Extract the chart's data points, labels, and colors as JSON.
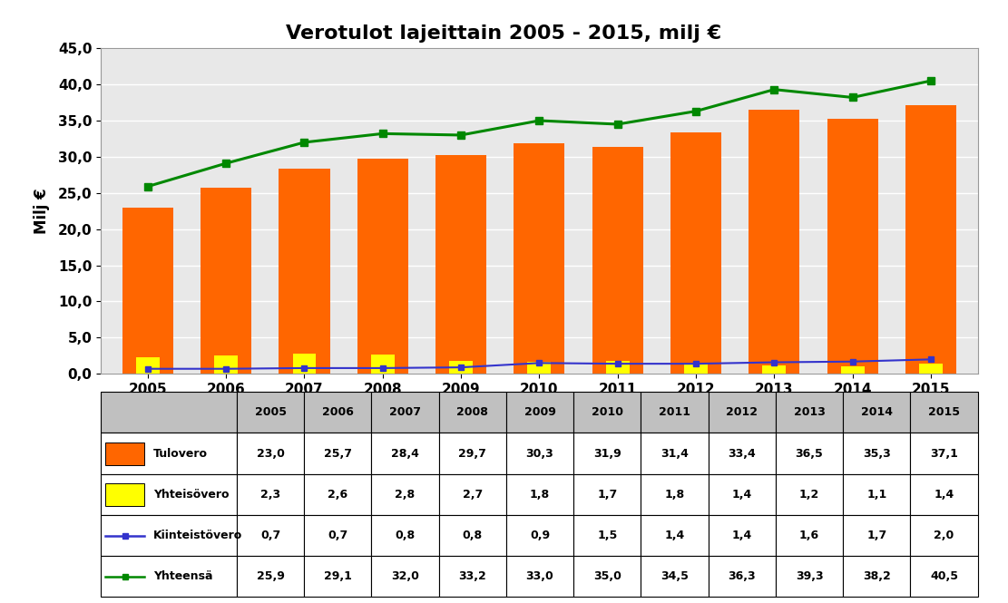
{
  "title": "Verotulot lajeittain 2005 - 2015, milj €",
  "years": [
    2005,
    2006,
    2007,
    2008,
    2009,
    2010,
    2011,
    2012,
    2013,
    2014,
    2015
  ],
  "tulovero": [
    23.0,
    25.7,
    28.4,
    29.7,
    30.3,
    31.9,
    31.4,
    33.4,
    36.5,
    35.3,
    37.1
  ],
  "yhteisovero": [
    2.3,
    2.6,
    2.8,
    2.7,
    1.8,
    1.7,
    1.8,
    1.4,
    1.2,
    1.1,
    1.4
  ],
  "kiinteistovero": [
    0.7,
    0.7,
    0.8,
    0.8,
    0.9,
    1.5,
    1.4,
    1.4,
    1.6,
    1.7,
    2.0
  ],
  "yhteensa": [
    25.9,
    29.1,
    32.0,
    33.2,
    33.0,
    35.0,
    34.5,
    36.3,
    39.3,
    38.2,
    40.5
  ],
  "bar_color_tulovero": "#FF6600",
  "bar_color_yhteiso": "#FFFF00",
  "line_color_kiinteisto": "#3333CC",
  "line_color_yhteensa": "#008800",
  "ylabel": "Milj €",
  "ylim": [
    0,
    45
  ],
  "yticks": [
    0.0,
    5.0,
    10.0,
    15.0,
    20.0,
    25.0,
    30.0,
    35.0,
    40.0,
    45.0
  ],
  "background_color": "#FFFFFF",
  "plot_bg_color": "#E8E8E8",
  "grid_color": "#FFFFFF",
  "legend_labels": [
    "Tulovero",
    "Yhteisövero",
    "Kiinteistövero",
    "Yhteensä"
  ],
  "table_values_tulovero": [
    "23,0",
    "25,7",
    "28,4",
    "29,7",
    "30,3",
    "31,9",
    "31,4",
    "33,4",
    "36,5",
    "35,3",
    "37,1"
  ],
  "table_values_yhteiso": [
    "2,3",
    "2,6",
    "2,8",
    "2,7",
    "1,8",
    "1,7",
    "1,8",
    "1,4",
    "1,2",
    "1,1",
    "1,4"
  ],
  "table_values_kiinteisto": [
    "0,7",
    "0,7",
    "0,8",
    "0,8",
    "0,9",
    "1,5",
    "1,4",
    "1,4",
    "1,6",
    "1,7",
    "2,0"
  ],
  "table_values_yhteensa": [
    "25,9",
    "29,1",
    "32,0",
    "33,2",
    "33,0",
    "35,0",
    "34,5",
    "36,3",
    "39,3",
    "38,2",
    "40,5"
  ],
  "title_fontsize": 16,
  "axis_fontsize": 11,
  "table_fontsize": 9
}
